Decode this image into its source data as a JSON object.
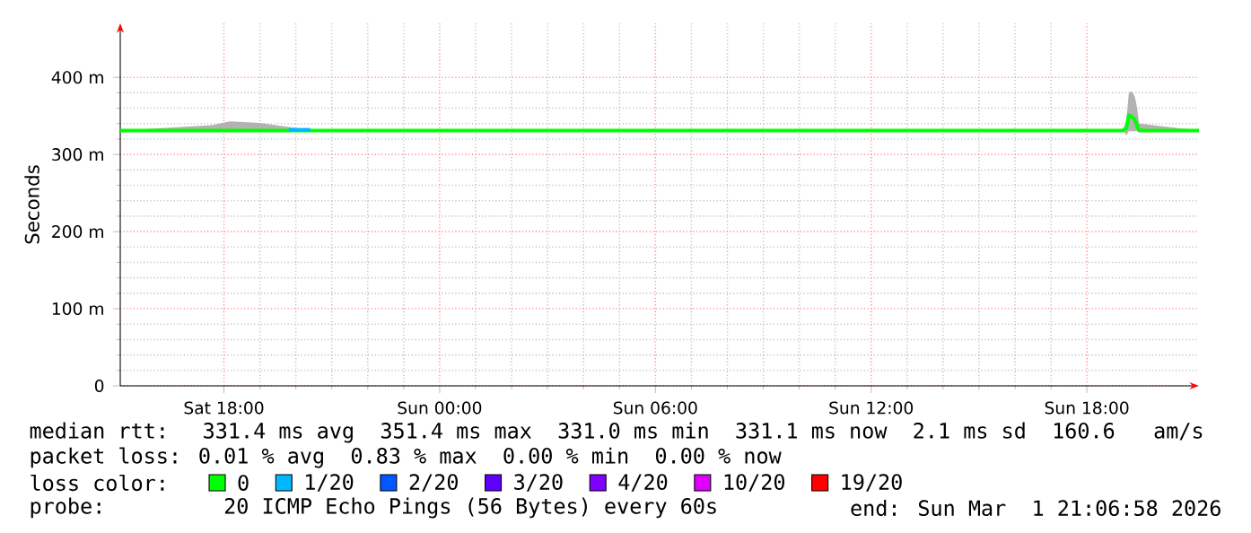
{
  "chart_data": {
    "type": "line",
    "ylabel": "Seconds",
    "legend_title": "loss color:",
    "legend": "bottom",
    "grid": true,
    "xlim": [
      "2026-02-28T15:07",
      "2026-03-01T21:07"
    ],
    "xticks": [
      {
        "value": "2026-02-28T18:00",
        "label": "Sat 18:00"
      },
      {
        "value": "2026-03-01T00:00",
        "label": "Sun 00:00"
      },
      {
        "value": "2026-03-01T06:00",
        "label": "Sun 06:00"
      },
      {
        "value": "2026-03-01T12:00",
        "label": "Sun 12:00"
      },
      {
        "value": "2026-03-01T18:00",
        "label": "Sun 18:00"
      }
    ],
    "ylim": [
      0,
      470
    ],
    "yticks": [
      0,
      {
        "value": 100,
        "label": "100 m"
      },
      {
        "value": 200,
        "label": "200 m"
      },
      {
        "value": 300,
        "label": "300 m"
      },
      {
        "value": 400,
        "label": "400 m"
      }
    ],
    "series": [
      {
        "name": "0",
        "color": "#00ff00",
        "x": [
          "2026-02-28T15:07",
          "2026-02-28T17:40",
          "2026-02-28T18:10",
          "2026-02-28T19:00",
          "2026-02-28T20:30",
          "2026-03-01T19:00",
          "2026-03-01T19:06",
          "2026-03-01T19:10",
          "2026-03-01T19:15",
          "2026-03-01T19:20",
          "2026-03-01T19:24",
          "2026-03-01T19:27",
          "2026-03-01T21:07"
        ],
        "values": [
          331,
          331,
          331,
          331,
          331,
          331,
          334,
          351,
          349,
          345,
          337,
          331,
          331
        ],
        "lower": [
          331,
          331,
          331,
          331,
          331,
          331,
          325,
          330,
          330,
          330,
          331,
          331,
          331
        ],
        "upper": [
          331,
          338,
          343,
          341,
          331,
          331,
          345,
          380,
          382,
          375,
          360,
          340,
          331
        ]
      },
      {
        "name": "1/20",
        "color": "#00b8ff",
        "x": [
          "2026-02-28T19:48",
          "2026-02-28T20:24"
        ],
        "values": [
          332,
          332
        ]
      },
      {
        "name": "2/20",
        "color": "#0059ff"
      },
      {
        "name": "3/20",
        "color": "#5e00ff"
      },
      {
        "name": "4/20",
        "color": "#7e00ff"
      },
      {
        "name": "10/20",
        "color": "#dd00ff"
      },
      {
        "name": "19/20",
        "color": "#ff0000"
      }
    ],
    "annotations": [
      "median rtt:  331.4 ms avg  351.4 ms max  331.0 ms min  331.1 ms now  2.1 ms sd  160.6   am/s",
      "packet loss: 0.01 % avg  0.83 % max  0.00 % min  0.00 % now",
      "probe:       20 ICMP Echo Pings (56 Bytes) every 60s",
      "end: Sun Mar  1 21:06:58 2026"
    ]
  }
}
